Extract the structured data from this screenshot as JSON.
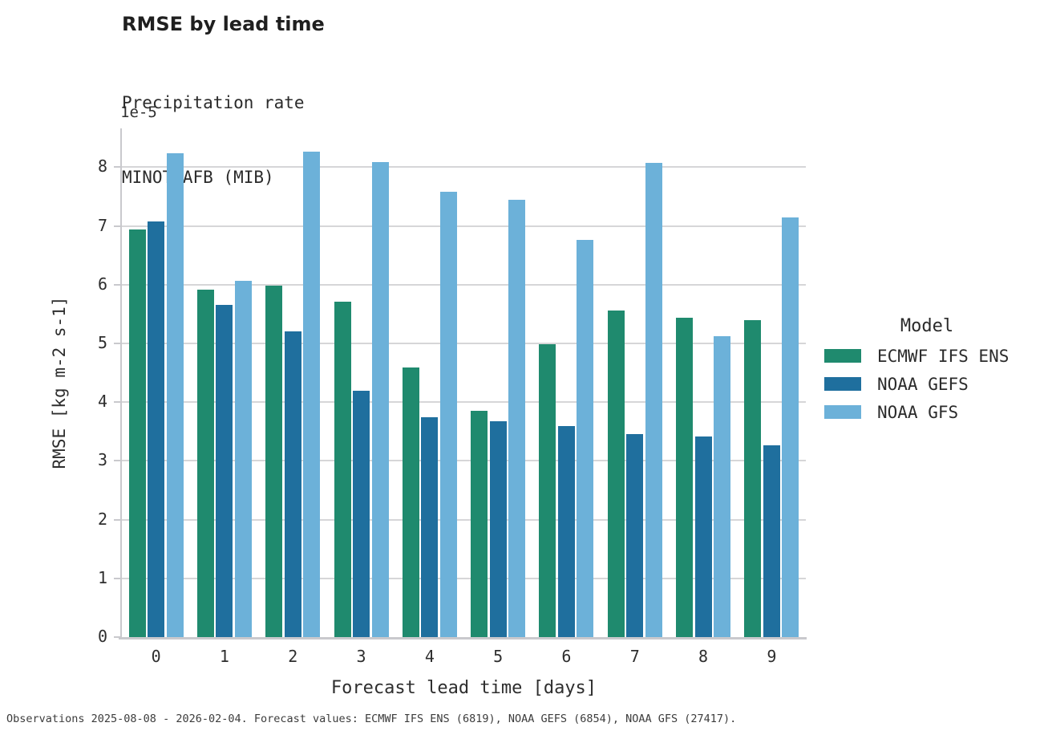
{
  "header": {
    "title": "RMSE by lead time",
    "subtitle_line1": "Precipitation rate",
    "subtitle_line2": "MINOT_AFB (MIB)"
  },
  "chart_data": {
    "type": "bar",
    "title": "RMSE by lead time",
    "subtitle": [
      "Precipitation rate",
      "MINOT_AFB (MIB)"
    ],
    "xlabel": "Forecast lead time [days]",
    "ylabel": "RMSE [kg m-2 s-1]",
    "y_offset_label": "1e-5",
    "value_scale": "1e-5",
    "categories": [
      "0",
      "1",
      "2",
      "3",
      "4",
      "5",
      "6",
      "7",
      "8",
      "9"
    ],
    "series": [
      {
        "name": "ECMWF IFS ENS",
        "color": "#1f8a6e",
        "values": [
          6.94,
          5.91,
          5.98,
          5.71,
          4.59,
          3.85,
          4.98,
          5.56,
          5.43,
          5.39
        ]
      },
      {
        "name": "NOAA GEFS",
        "color": "#1f6f9e",
        "values": [
          7.08,
          5.65,
          5.21,
          4.19,
          3.74,
          3.67,
          3.59,
          3.46,
          3.41,
          3.26
        ]
      },
      {
        "name": "NOAA GFS",
        "color": "#6cb1d9",
        "values": [
          8.24,
          6.06,
          8.26,
          8.08,
          7.58,
          7.44,
          6.76,
          8.07,
          5.12,
          7.15
        ]
      }
    ],
    "ylim": [
      0,
      8.66
    ],
    "yticks": [
      0,
      1,
      2,
      3,
      4,
      5,
      6,
      7,
      8
    ],
    "grid": true,
    "legend_position": "right",
    "colors": {
      "gridline": "#d6d6d8",
      "spine": "#c9c9cd",
      "text": "#2b2b2b"
    }
  },
  "legend": {
    "title": "Model"
  },
  "footnote": "Observations 2025-08-08 - 2026-02-04. Forecast values: ECMWF IFS ENS (6819), NOAA GEFS (6854), NOAA GFS (27417)."
}
